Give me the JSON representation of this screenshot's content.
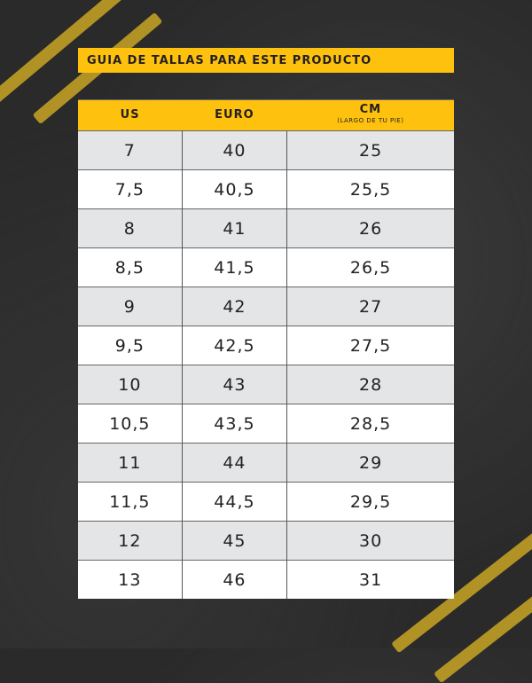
{
  "title": "GUIA DE TALLAS PARA ESTE PRODUCTO",
  "headers": {
    "us": "US",
    "euro": "EURO",
    "cm": "CM",
    "cm_note": "(LARGO DE TU PIE)"
  },
  "rows": [
    [
      "7",
      "40",
      "25"
    ],
    [
      "7,5",
      "40,5",
      "25,5"
    ],
    [
      "8",
      "41",
      "26"
    ],
    [
      "8,5",
      "41,5",
      "26,5"
    ],
    [
      "9",
      "42",
      "27"
    ],
    [
      "9,5",
      "42,5",
      "27,5"
    ],
    [
      "10",
      "43",
      "28"
    ],
    [
      "10,5",
      "43,5",
      "28,5"
    ],
    [
      "11",
      "44",
      "29"
    ],
    [
      "11,5",
      "44,5",
      "29,5"
    ],
    [
      "12",
      "45",
      "30"
    ],
    [
      "13",
      "46",
      "31"
    ]
  ],
  "colors": {
    "accent": "#fec20e",
    "row_alt": "#e3e5e6",
    "background": "#2a2a2a"
  }
}
